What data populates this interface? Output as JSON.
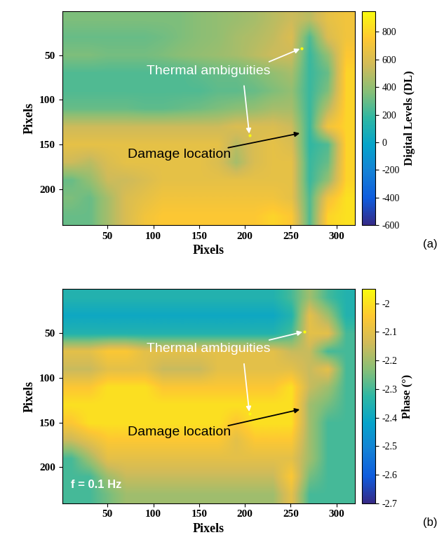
{
  "chart_data": [
    {
      "type": "heatmap",
      "panel_label": "(a)",
      "x_label": "Pixels",
      "y_label": "Pixels",
      "xlim": [
        0.5,
        320.5
      ],
      "ylim": [
        240.5,
        0.5
      ],
      "xticks": [
        50,
        100,
        150,
        200,
        250,
        300
      ],
      "yticks": [
        50,
        100,
        150,
        200
      ],
      "colorbar": {
        "label": "Digital Levels (DL)",
        "range": [
          -600,
          950
        ],
        "ticks": [
          -600,
          -400,
          -200,
          0,
          200,
          400,
          600,
          800
        ]
      },
      "cells": [
        [
          350,
          350,
          350,
          350,
          350,
          350,
          350,
          380,
          400,
          420,
          450,
          500,
          550,
          500,
          650,
          700
        ],
        [
          300,
          300,
          300,
          300,
          300,
          320,
          350,
          380,
          400,
          450,
          480,
          520,
          600,
          250,
          600,
          700
        ],
        [
          350,
          350,
          330,
          330,
          330,
          350,
          380,
          400,
          420,
          450,
          500,
          550,
          550,
          200,
          400,
          750
        ],
        [
          250,
          250,
          250,
          250,
          250,
          250,
          250,
          280,
          300,
          300,
          350,
          400,
          450,
          200,
          300,
          800
        ],
        [
          250,
          250,
          250,
          250,
          250,
          250,
          250,
          250,
          280,
          280,
          300,
          350,
          400,
          200,
          350,
          800
        ],
        [
          300,
          300,
          300,
          300,
          280,
          280,
          300,
          320,
          350,
          380,
          400,
          450,
          450,
          200,
          500,
          800
        ],
        [
          550,
          550,
          550,
          550,
          550,
          550,
          550,
          550,
          550,
          600,
          600,
          600,
          550,
          200,
          700,
          800
        ],
        [
          650,
          650,
          650,
          650,
          650,
          650,
          650,
          650,
          650,
          500,
          600,
          650,
          600,
          180,
          250,
          800
        ],
        [
          550,
          500,
          600,
          650,
          650,
          650,
          650,
          650,
          600,
          450,
          600,
          650,
          650,
          200,
          300,
          800
        ],
        [
          300,
          400,
          550,
          550,
          600,
          650,
          650,
          650,
          650,
          650,
          650,
          650,
          650,
          200,
          400,
          800
        ],
        [
          350,
          300,
          450,
          600,
          650,
          700,
          700,
          700,
          700,
          700,
          700,
          700,
          650,
          250,
          700,
          850
        ],
        [
          300,
          300,
          450,
          600,
          700,
          750,
          750,
          750,
          750,
          750,
          750,
          800,
          750,
          250,
          800,
          850
        ]
      ],
      "annotations": [
        {
          "text": "Thermal ambiguities",
          "color": "white",
          "targets": [
            [
              262,
              42
            ],
            [
              205,
              140
            ]
          ]
        },
        {
          "text": "Damage location",
          "color": "black",
          "targets": [
            [
              262,
              137
            ]
          ]
        }
      ]
    },
    {
      "type": "heatmap",
      "panel_label": "(b)",
      "x_label": "Pixels",
      "y_label": "Pixels",
      "note": "f = 0.1 Hz",
      "xlim": [
        0.5,
        320.5
      ],
      "ylim": [
        240.5,
        0.5
      ],
      "xticks": [
        50,
        100,
        150,
        200,
        250,
        300
      ],
      "yticks": [
        50,
        100,
        150,
        200
      ],
      "colorbar": {
        "label": "Phase (°)",
        "range": [
          -2.7,
          -1.95
        ],
        "ticks": [
          -2.7,
          -2.6,
          -2.5,
          -2.4,
          -2.3,
          -2.2,
          -2.1,
          -2
        ]
      },
      "cells": [
        [
          -2.35,
          -2.35,
          -2.35,
          -2.35,
          -2.35,
          -2.35,
          -2.35,
          -2.35,
          -2.35,
          -2.35,
          -2.35,
          -2.35,
          -2.3,
          -2.2,
          -2.3,
          -2.35
        ],
        [
          -2.4,
          -2.4,
          -2.4,
          -2.4,
          -2.4,
          -2.4,
          -2.4,
          -2.4,
          -2.4,
          -2.4,
          -2.4,
          -2.4,
          -2.35,
          -2.1,
          -2.2,
          -2.35
        ],
        [
          -2.35,
          -2.35,
          -2.35,
          -2.35,
          -2.35,
          -2.35,
          -2.35,
          -2.35,
          -2.35,
          -2.35,
          -2.35,
          -2.35,
          -2.3,
          -2.1,
          -2.1,
          -2.3
        ],
        [
          -2.1,
          -2.1,
          -2.05,
          -2.05,
          -2.1,
          -2.1,
          -2.1,
          -2.1,
          -2.1,
          -2.1,
          -2.1,
          -2.1,
          -2.15,
          -2.15,
          -2.3,
          -2.3
        ],
        [
          -2.15,
          -2.15,
          -2.1,
          -2.1,
          -2.1,
          -2.15,
          -2.15,
          -2.15,
          -2.1,
          -2.1,
          -2.1,
          -2.1,
          -2.1,
          -2.15,
          -2.1,
          -2.3
        ],
        [
          -2.05,
          -2.05,
          -2.0,
          -2.0,
          -2.0,
          -2.05,
          -2.05,
          -2.05,
          -2.05,
          -2.05,
          -2.05,
          -2.05,
          -2.0,
          -2.15,
          -2.2,
          -2.3
        ],
        [
          -2.0,
          -2.0,
          -2.0,
          -2.0,
          -2.0,
          -2.0,
          -2.0,
          -2.0,
          -2.0,
          -2.0,
          -2.0,
          -2.0,
          -2.0,
          -2.2,
          -2.25,
          -2.3
        ],
        [
          -2.05,
          -2.0,
          -2.0,
          -2.0,
          -2.0,
          -2.0,
          -2.0,
          -2.0,
          -2.0,
          -2.05,
          -2.0,
          -2.0,
          -2.0,
          -2.2,
          -2.3,
          -2.3
        ],
        [
          -2.15,
          -2.1,
          -2.05,
          -2.05,
          -2.05,
          -2.05,
          -2.05,
          -2.05,
          -2.05,
          -2.1,
          -2.05,
          -2.05,
          -2.05,
          -2.2,
          -2.3,
          -2.3
        ],
        [
          -2.3,
          -2.2,
          -2.1,
          -2.1,
          -2.1,
          -2.1,
          -2.1,
          -2.1,
          -2.1,
          -2.1,
          -2.1,
          -2.1,
          -2.1,
          -2.2,
          -2.3,
          -2.3
        ],
        [
          -2.3,
          -2.3,
          -2.2,
          -2.15,
          -2.15,
          -2.15,
          -2.15,
          -2.15,
          -2.15,
          -2.15,
          -2.15,
          -2.15,
          -2.05,
          -2.25,
          -2.3,
          -2.3
        ],
        [
          -2.3,
          -2.3,
          -2.25,
          -2.2,
          -2.2,
          -2.2,
          -2.2,
          -2.2,
          -2.2,
          -2.2,
          -2.2,
          -2.2,
          -2.1,
          -2.3,
          -2.3,
          -2.3
        ]
      ],
      "annotations": [
        {
          "text": "Thermal ambiguities",
          "color": "white",
          "targets": [
            [
              265,
              48
            ],
            [
              205,
              140
            ]
          ]
        },
        {
          "text": "Damage location",
          "color": "black",
          "targets": [
            [
              262,
              135
            ]
          ]
        }
      ]
    }
  ]
}
